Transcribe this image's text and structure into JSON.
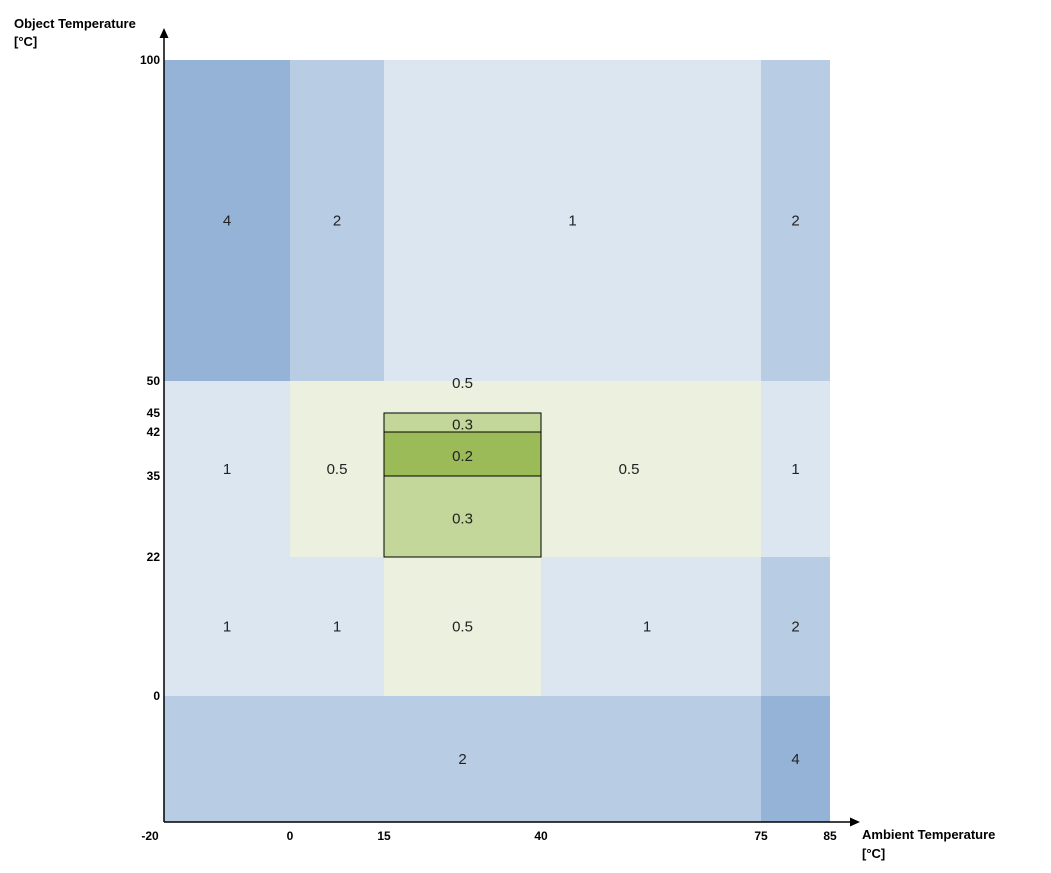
{
  "chart_data": {
    "type": "heatmap",
    "xlabel": "Ambient Temperature",
    "xunit": "[°C]",
    "ylabel": "Object Temperature",
    "yunit": "[°C]",
    "xlim": [
      -20,
      85
    ],
    "ylim": [
      -20,
      100
    ],
    "x_ticks": [
      -20,
      0,
      15,
      40,
      75,
      85
    ],
    "y_ticks": [
      100,
      50,
      45,
      42,
      35,
      22,
      0
    ],
    "colors": {
      "4": "#95b3d7",
      "2": "#b8cce4",
      "1": "#dce6f1",
      "0.5": "#ebf1de",
      "0.3": "#c4d79b",
      "0.2": "#9bbb59"
    },
    "cells": [
      {
        "x0": -20,
        "x1": 0,
        "y0": 50,
        "y1": 100,
        "value": "4"
      },
      {
        "x0": 0,
        "x1": 15,
        "y0": 50,
        "y1": 100,
        "value": "2"
      },
      {
        "x0": 15,
        "x1": 75,
        "y0": 50,
        "y1": 100,
        "value": "1"
      },
      {
        "x0": 75,
        "x1": 85,
        "y0": 50,
        "y1": 100,
        "value": "2"
      },
      {
        "x0": -20,
        "x1": 0,
        "y0": 22,
        "y1": 50,
        "value": "1"
      },
      {
        "x0": 0,
        "x1": 15,
        "y0": 22,
        "y1": 50,
        "value": "0.5"
      },
      {
        "x0": 15,
        "x1": 40,
        "y0": 45,
        "y1": 50,
        "value": "0.5"
      },
      {
        "x0": 15,
        "x1": 40,
        "y0": 42,
        "y1": 45,
        "value": "0.3",
        "outline": true
      },
      {
        "x0": 15,
        "x1": 40,
        "y0": 35,
        "y1": 42,
        "value": "0.2",
        "outline": true
      },
      {
        "x0": 15,
        "x1": 40,
        "y0": 22,
        "y1": 35,
        "value": "0.3",
        "outline": true
      },
      {
        "x0": 40,
        "x1": 75,
        "y0": 22,
        "y1": 50,
        "value": "0.5"
      },
      {
        "x0": 75,
        "x1": 85,
        "y0": 22,
        "y1": 50,
        "value": "1"
      },
      {
        "x0": -20,
        "x1": 0,
        "y0": 0,
        "y1": 22,
        "value": "1"
      },
      {
        "x0": 0,
        "x1": 15,
        "y0": 0,
        "y1": 22,
        "value": "1"
      },
      {
        "x0": 15,
        "x1": 40,
        "y0": 0,
        "y1": 22,
        "value": "0.5"
      },
      {
        "x0": 40,
        "x1": 75,
        "y0": 0,
        "y1": 22,
        "value": "1"
      },
      {
        "x0": 75,
        "x1": 85,
        "y0": 0,
        "y1": 22,
        "value": "2"
      },
      {
        "x0": -20,
        "x1": 75,
        "y0": -20,
        "y1": 0,
        "value": "2"
      },
      {
        "x0": 75,
        "x1": 85,
        "y0": -20,
        "y1": 0,
        "value": "4"
      }
    ]
  }
}
